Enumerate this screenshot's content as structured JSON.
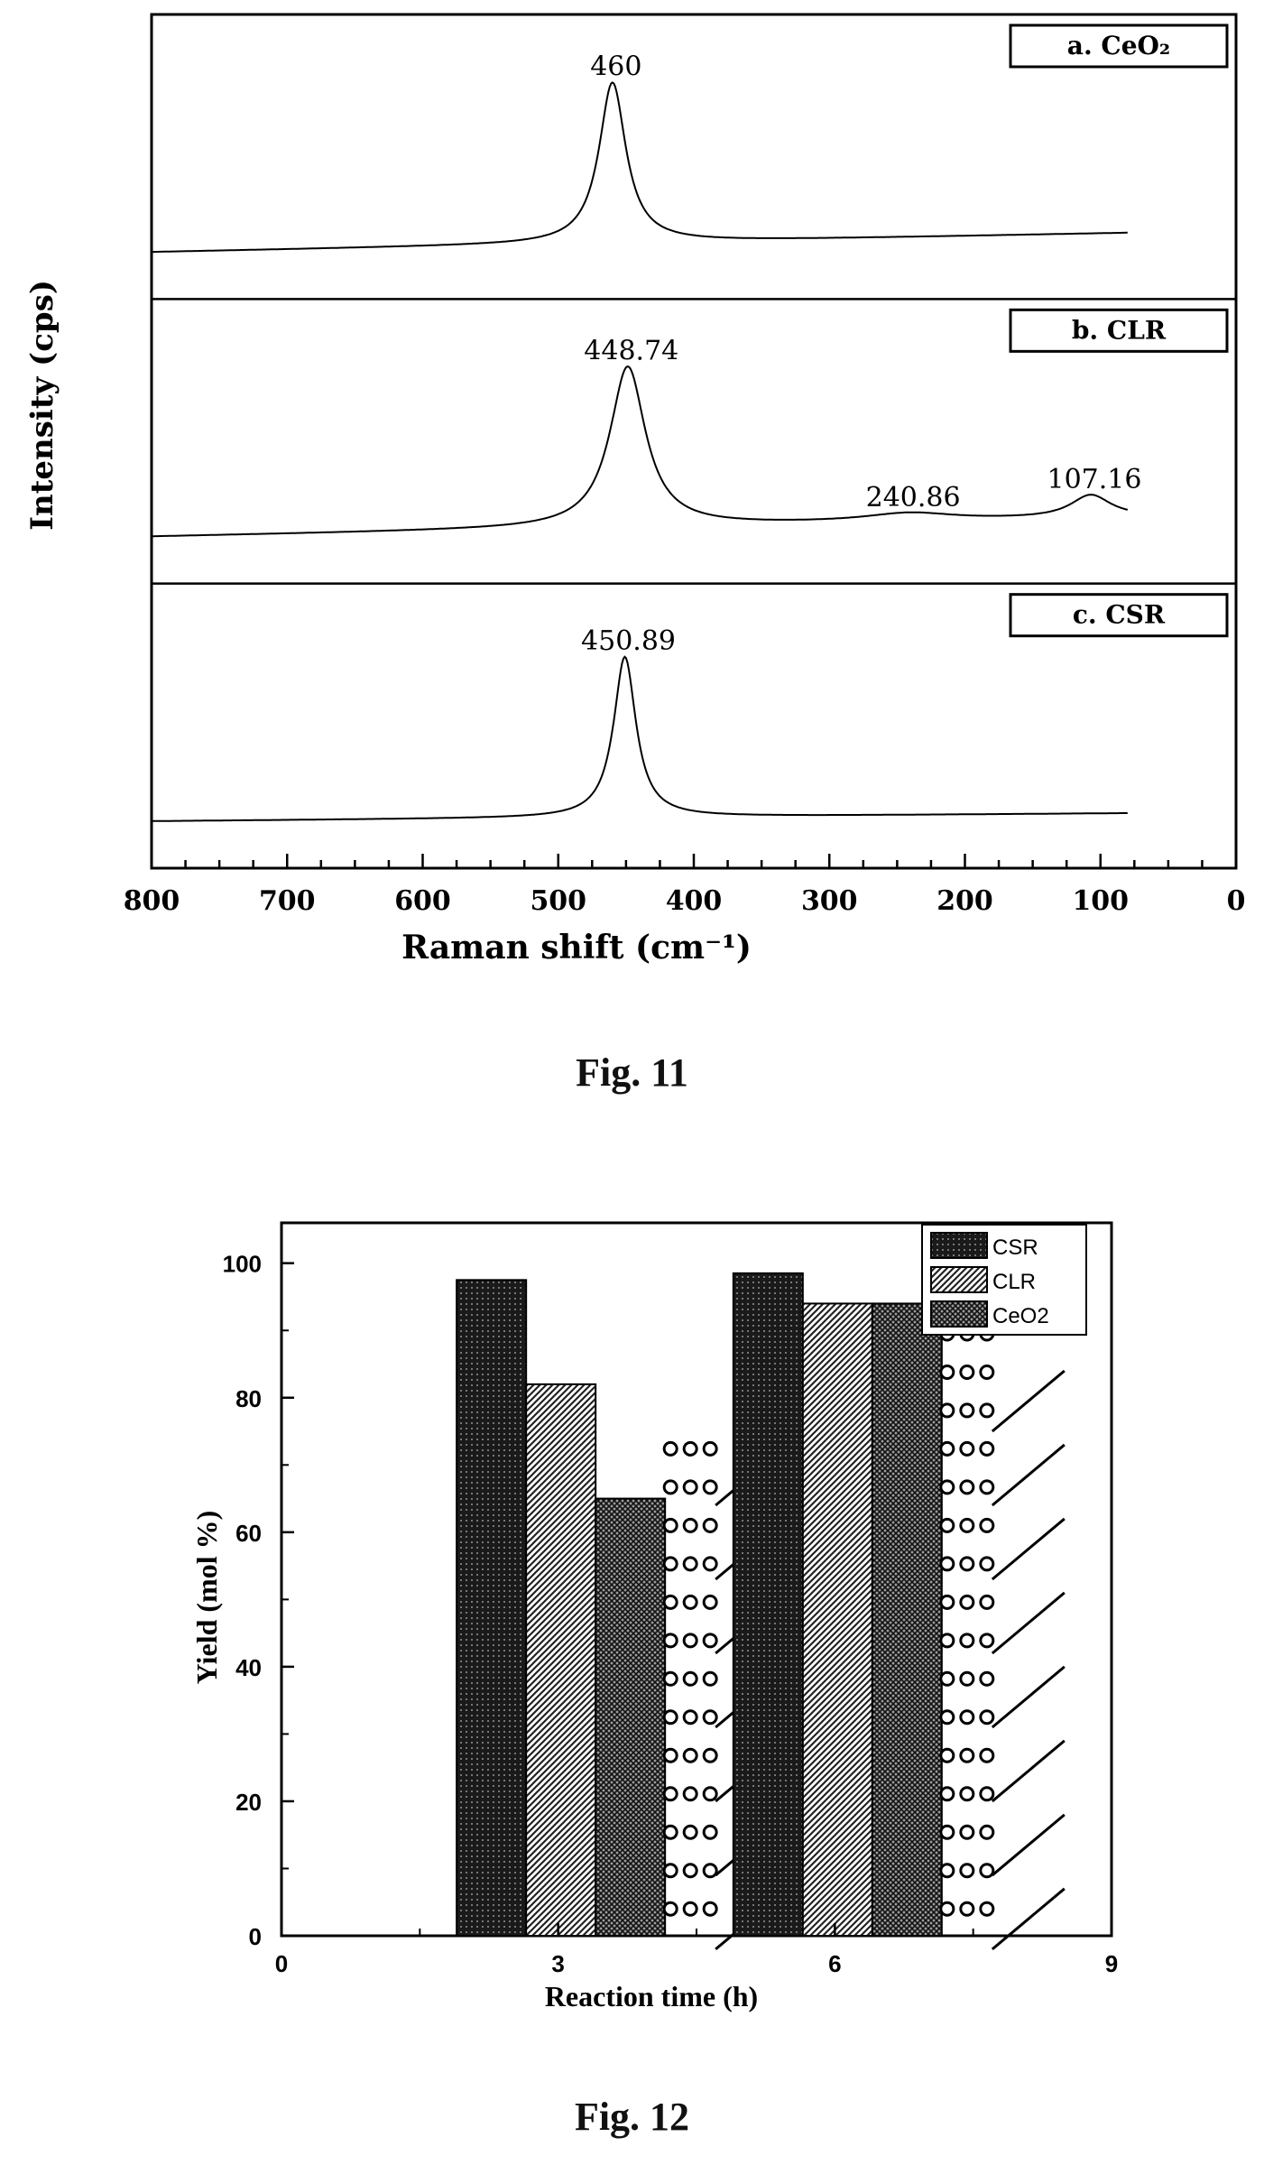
{
  "figures": {
    "fig11_caption": "Fig. 11",
    "fig12_caption": "Fig. 12"
  },
  "chart_data": [
    {
      "type": "line",
      "xlabel": "Raman shift (cm⁻¹)",
      "ylabel": "Intensity (cps)",
      "xlim": [
        800,
        0
      ],
      "xticks": [
        800,
        700,
        600,
        500,
        400,
        300,
        200,
        100,
        0
      ],
      "panels": [
        {
          "name": "a. CeO₂",
          "baseline_left": 0.0,
          "baseline_right": 0.12,
          "peaks": [
            {
              "x": 460,
              "height": 1.0,
              "width": 12,
              "label": "460"
            }
          ]
        },
        {
          "name": "b. CLR",
          "baseline_left": 0.0,
          "baseline_right": 0.12,
          "peaks": [
            {
              "x": 448.74,
              "height": 1.0,
              "width": 16,
              "label": "448.74"
            },
            {
              "x": 240.86,
              "height": 0.05,
              "width": 40,
              "label": "240.86"
            },
            {
              "x": 107.16,
              "height": 0.14,
              "width": 18,
              "label": "107.16"
            }
          ]
        },
        {
          "name": "c. CSR",
          "baseline_left": 0.0,
          "baseline_right": 0.05,
          "peaks": [
            {
              "x": 450.89,
              "height": 1.0,
              "width": 10,
              "label": "450.89"
            }
          ]
        }
      ]
    },
    {
      "type": "bar",
      "xlabel": "Reaction time (h)",
      "ylabel": "Yield (mol %)",
      "xlim": [
        0,
        9
      ],
      "ylim": [
        0,
        106
      ],
      "xticks": [
        0,
        3,
        6,
        9
      ],
      "yticks": [
        0,
        20,
        40,
        60,
        80,
        100
      ],
      "categories": [
        3,
        6
      ],
      "series": [
        {
          "name": "CSR",
          "values": [
            97.5,
            98.5
          ]
        },
        {
          "name": "CLR",
          "values": [
            82,
            94
          ]
        },
        {
          "name": "CeO2",
          "values": [
            65,
            94
          ]
        }
      ]
    }
  ]
}
